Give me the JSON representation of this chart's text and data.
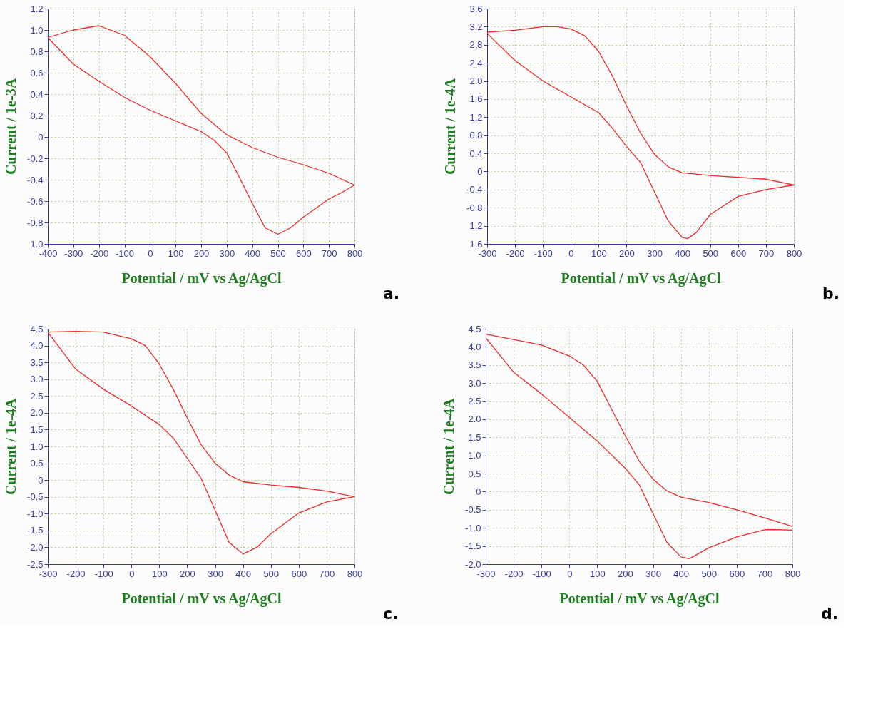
{
  "chart_data": [
    {
      "type": "line",
      "xlabel": "Potential / mV vs Ag/AgCl",
      "ylabel": "Current / 1e-3A",
      "annotations": [
        "a."
      ],
      "grid": true,
      "legend": false,
      "marker": "none",
      "line_style": "solid",
      "xlim": [
        -400,
        800
      ],
      "xticks": [
        -400,
        -300,
        -200,
        -100,
        0,
        100,
        200,
        300,
        400,
        500,
        600,
        700,
        800
      ],
      "ylim": [
        -1.0,
        1.2
      ],
      "yticks": [
        {
          "value": -1,
          "label": "1.0"
        },
        -0.8,
        -0.6,
        -0.4,
        -0.2,
        0,
        0.2,
        0.4,
        0.6,
        0.8,
        {
          "value": 1,
          "label": "1.0"
        },
        1.2
      ],
      "series": [
        {
          "color": "#ee2a2a",
          "x": [
            -400,
            -300,
            -200,
            -100,
            0,
            100,
            200,
            300,
            400,
            500,
            600,
            700,
            800
          ],
          "values": [
            0.93,
            1.0,
            1.04,
            0.95,
            0.75,
            0.5,
            0.22,
            0.02,
            -0.1,
            -0.19,
            -0.26,
            -0.34,
            -0.45
          ]
        },
        {
          "color": "#ee2a2a",
          "x": [
            800,
            750,
            700,
            600,
            550,
            500,
            450,
            400,
            350,
            300,
            250,
            200,
            100,
            0,
            -100,
            -200,
            -300,
            -400
          ],
          "values": [
            -0.45,
            -0.52,
            -0.58,
            -0.75,
            -0.85,
            -0.91,
            -0.85,
            -0.62,
            -0.38,
            -0.15,
            -0.03,
            0.05,
            0.15,
            0.25,
            0.37,
            0.52,
            0.68,
            0.93
          ]
        }
      ]
    },
    {
      "type": "line",
      "xlabel": "Potential / mV vs Ag/AgCl",
      "ylabel": "Current / 1e-4A",
      "annotations": [
        "b."
      ],
      "grid": true,
      "legend": false,
      "marker": "none",
      "line_style": "solid",
      "xlim": [
        -300,
        800
      ],
      "xticks": [
        -300,
        -200,
        -100,
        0,
        100,
        200,
        300,
        400,
        500,
        600,
        700,
        800
      ],
      "ylim": [
        -1.6,
        3.6
      ],
      "yticks": [
        {
          "value": -1.6,
          "label": "1.6"
        },
        {
          "value": -1.2,
          "label": "1.2"
        },
        -0.8,
        -0.4,
        0,
        0.4,
        0.8,
        1.2,
        1.6,
        {
          "value": 2,
          "label": "2.0"
        },
        2.4,
        2.8,
        3.2,
        3.6
      ],
      "series": [
        {
          "color": "#ee2a2a",
          "x": [
            -300,
            -200,
            -100,
            -50,
            0,
            50,
            100,
            150,
            200,
            250,
            300,
            350,
            400,
            500,
            600,
            700,
            800,
            750,
            700,
            600,
            500,
            450,
            420,
            400,
            350,
            300,
            250,
            200,
            150,
            100,
            0,
            -100,
            -200,
            -300
          ],
          "values": [
            3.08,
            3.12,
            3.2,
            3.2,
            3.15,
            3.0,
            2.65,
            2.1,
            1.45,
            0.85,
            0.38,
            0.1,
            -0.03,
            -0.09,
            -0.13,
            -0.17,
            -0.3,
            -0.35,
            -0.4,
            -0.55,
            -0.95,
            -1.35,
            -1.48,
            -1.46,
            -1.1,
            -0.45,
            0.2,
            0.55,
            0.95,
            1.3,
            1.65,
            2.0,
            2.45,
            3.05
          ]
        }
      ]
    },
    {
      "type": "line",
      "xlabel": "Potential / mV vs Ag/AgCl",
      "ylabel": "Current / 1e-4A",
      "annotations": [
        "c."
      ],
      "grid": true,
      "legend": false,
      "marker": "none",
      "line_style": "solid",
      "xlim": [
        -300,
        800
      ],
      "xticks": [
        -300,
        -200,
        -100,
        0,
        100,
        200,
        300,
        400,
        500,
        600,
        700,
        800
      ],
      "ylim": [
        -2.5,
        4.5
      ],
      "yticks": [
        -2.5,
        {
          "value": -2,
          "label": "-2.0"
        },
        -1.5,
        {
          "value": -1,
          "label": "-1.0"
        },
        -0.5,
        0,
        0.5,
        {
          "value": 1,
          "label": "1.0"
        },
        1.5,
        {
          "value": 2,
          "label": "2.0"
        },
        2.5,
        {
          "value": 3,
          "label": "3.0"
        },
        3.5,
        {
          "value": 4,
          "label": "4.0"
        },
        4.5
      ],
      "series": [
        {
          "color": "#ee2a2a",
          "x": [
            -300,
            -200,
            -100,
            0,
            50,
            100,
            150,
            200,
            250,
            300,
            350,
            400,
            500,
            600,
            700,
            800
          ],
          "values": [
            4.4,
            4.42,
            4.4,
            4.2,
            4.0,
            3.45,
            2.7,
            1.85,
            1.05,
            0.5,
            0.15,
            -0.05,
            -0.15,
            -0.22,
            -0.33,
            -0.5
          ]
        },
        {
          "color": "#ee2a2a",
          "x": [
            800,
            750,
            700,
            600,
            500,
            450,
            400,
            350,
            300,
            250,
            200,
            150,
            100,
            0,
            -100,
            -200,
            -300
          ],
          "values": [
            -0.5,
            -0.57,
            -0.65,
            -0.98,
            -1.6,
            -2.0,
            -2.2,
            -1.85,
            -0.9,
            0.05,
            0.65,
            1.25,
            1.65,
            2.2,
            2.7,
            3.3,
            4.4
          ]
        }
      ]
    },
    {
      "type": "line",
      "xlabel": "Potential / mV vs Ag/AgCl",
      "ylabel": "Current / 1e-4A",
      "annotations": [
        "d."
      ],
      "grid": true,
      "legend": false,
      "marker": "none",
      "line_style": "solid",
      "xlim": [
        -300,
        800
      ],
      "xticks": [
        -300,
        -200,
        -100,
        0,
        100,
        200,
        300,
        400,
        500,
        600,
        700,
        800
      ],
      "ylim": [
        -2.0,
        4.5
      ],
      "yticks": [
        {
          "value": -2,
          "label": "-2.0"
        },
        -1.5,
        {
          "value": -1,
          "label": "-1.0"
        },
        -0.5,
        0,
        0.5,
        {
          "value": 1,
          "label": "1.0"
        },
        1.5,
        {
          "value": 2,
          "label": "2.0"
        },
        2.5,
        {
          "value": 3,
          "label": "3.0"
        },
        3.5,
        {
          "value": 4,
          "label": "4.0"
        },
        4.5
      ],
      "series": [
        {
          "color": "#ee2a2a",
          "x": [
            -300,
            -200,
            -100,
            0,
            50,
            100,
            150,
            200,
            250,
            300,
            350,
            400,
            500,
            600,
            700,
            800
          ],
          "values": [
            4.35,
            4.2,
            4.05,
            3.75,
            3.5,
            3.05,
            2.3,
            1.55,
            0.85,
            0.35,
            0.02,
            -0.15,
            -0.3,
            -0.5,
            -0.72,
            -0.96
          ]
        },
        {
          "color": "#ee2a2a",
          "x": [
            800,
            750,
            700,
            600,
            500,
            430,
            400,
            350,
            300,
            250,
            200,
            100,
            0,
            -100,
            -200,
            -300
          ],
          "values": [
            -1.06,
            -1.05,
            -1.05,
            -1.25,
            -1.55,
            -1.85,
            -1.8,
            -1.4,
            -0.6,
            0.2,
            0.65,
            1.4,
            2.05,
            2.7,
            3.3,
            4.25
          ]
        }
      ]
    }
  ]
}
